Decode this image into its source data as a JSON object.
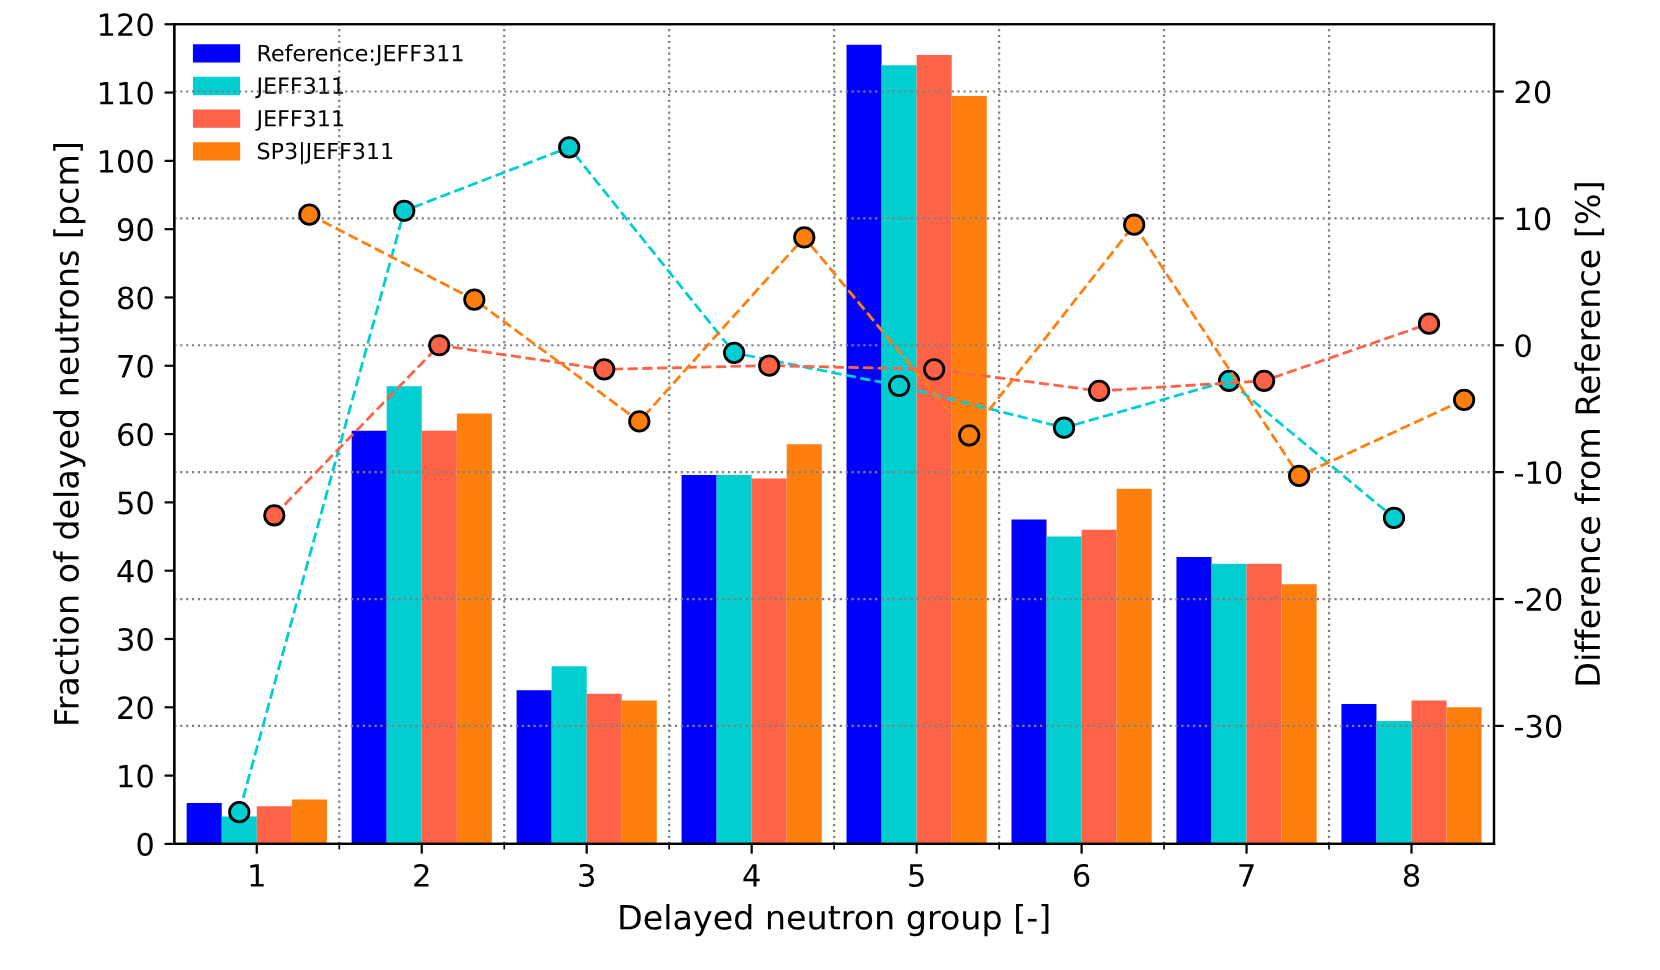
{
  "chart_data": {
    "type": "bar",
    "xlabel": "Delayed neutron group [-]",
    "ylabel": "Fraction of delayed neutrons [pcm]",
    "y2label": "Difference from Reference [%]",
    "categories": [
      "1",
      "2",
      "3",
      "4",
      "5",
      "6",
      "7",
      "8"
    ],
    "series": [
      {
        "name": "Reference:JEFF311",
        "color": "#0000ff",
        "values": [
          6,
          60.5,
          22.5,
          54,
          117,
          47.5,
          42,
          20.5
        ]
      },
      {
        "name": "JEFF311",
        "color": "#00ced1",
        "values": [
          4,
          67,
          26,
          54,
          114,
          45,
          41,
          18
        ]
      },
      {
        "name": "JEFF311",
        "color": "#ff6347",
        "values": [
          5.5,
          60.5,
          22,
          53.5,
          115.5,
          46,
          41,
          21
        ]
      },
      {
        "name": "SP3|JEFF311",
        "color": "#ff7f0e",
        "values": [
          6.5,
          63,
          21,
          58.5,
          109.5,
          52,
          38,
          20
        ]
      },
      {
        "type": "line",
        "axis": "y2",
        "color": "#00ced1",
        "marker": "circle",
        "line_style": "dashed",
        "values": [
          -36.8,
          10.6,
          15.6,
          -0.6,
          -3.2,
          -6.5,
          -2.8,
          -13.6
        ]
      },
      {
        "type": "line",
        "axis": "y2",
        "color": "#ff6347",
        "marker": "circle",
        "line_style": "dashed",
        "values": [
          -13.4,
          0,
          -1.9,
          -1.6,
          -1.9,
          -3.6,
          -2.8,
          1.7
        ]
      },
      {
        "type": "line",
        "axis": "y2",
        "color": "#ff7f0e",
        "marker": "circle",
        "line_style": "dashed",
        "values": [
          10.3,
          3.6,
          -6.0,
          8.5,
          -7.1,
          9.5,
          -10.3,
          -4.3
        ]
      }
    ],
    "ylim": [
      0,
      120
    ],
    "yticks": [
      0,
      10,
      20,
      30,
      40,
      50,
      60,
      70,
      80,
      90,
      100,
      110,
      120
    ],
    "y2lim": [
      -39.3,
      25.3
    ],
    "y2ticks": [
      -30,
      -20,
      -10,
      0,
      10,
      20
    ],
    "grid": true,
    "legend": "top left"
  }
}
